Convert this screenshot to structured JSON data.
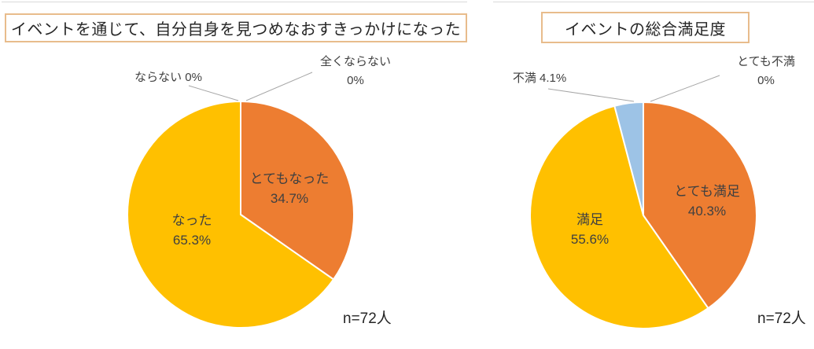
{
  "chart_data": [
    {
      "type": "pie",
      "title": "イベントを通じて、自分自身を見つめなおすきっかけになった",
      "n_label": "n=72人",
      "start_angle_deg": 0,
      "direction": "clockwise",
      "legend": "none",
      "slices": [
        {
          "label": "とてもなった",
          "value": 34.7,
          "display": "34.7%",
          "color": "#ED7D31",
          "placement": "inside"
        },
        {
          "label": "なった",
          "value": 65.3,
          "display": "65.3%",
          "color": "#FFC000",
          "placement": "inside"
        },
        {
          "label": "ならない",
          "value": 0,
          "display": "0%",
          "placement": "outside"
        },
        {
          "label": "全くならない",
          "value": 0,
          "display": "0%",
          "placement": "outside"
        }
      ]
    },
    {
      "type": "pie",
      "title": "イベントの総合満足度",
      "n_label": "n=72人",
      "start_angle_deg": 0,
      "direction": "clockwise",
      "legend": "none",
      "slices": [
        {
          "label": "とても満足",
          "value": 40.3,
          "display": "40.3%",
          "color": "#ED7D31",
          "placement": "inside"
        },
        {
          "label": "満足",
          "value": 55.6,
          "display": "55.6%",
          "color": "#FFC000",
          "placement": "inside"
        },
        {
          "label": "不満",
          "value": 4.1,
          "display": "4.1%",
          "color": "#9DC3E6",
          "placement": "outside"
        },
        {
          "label": "とても不満",
          "value": 0,
          "display": "0%",
          "placement": "outside"
        }
      ]
    }
  ],
  "styles": {
    "orange": "#ED7D31",
    "gold": "#FFC000",
    "light_blue": "#9DC3E6",
    "title_border": "#E8BC8C",
    "leader_line": "#A6A6A6",
    "label_text": "#404040",
    "pie_divider": "#FFFFFF"
  }
}
